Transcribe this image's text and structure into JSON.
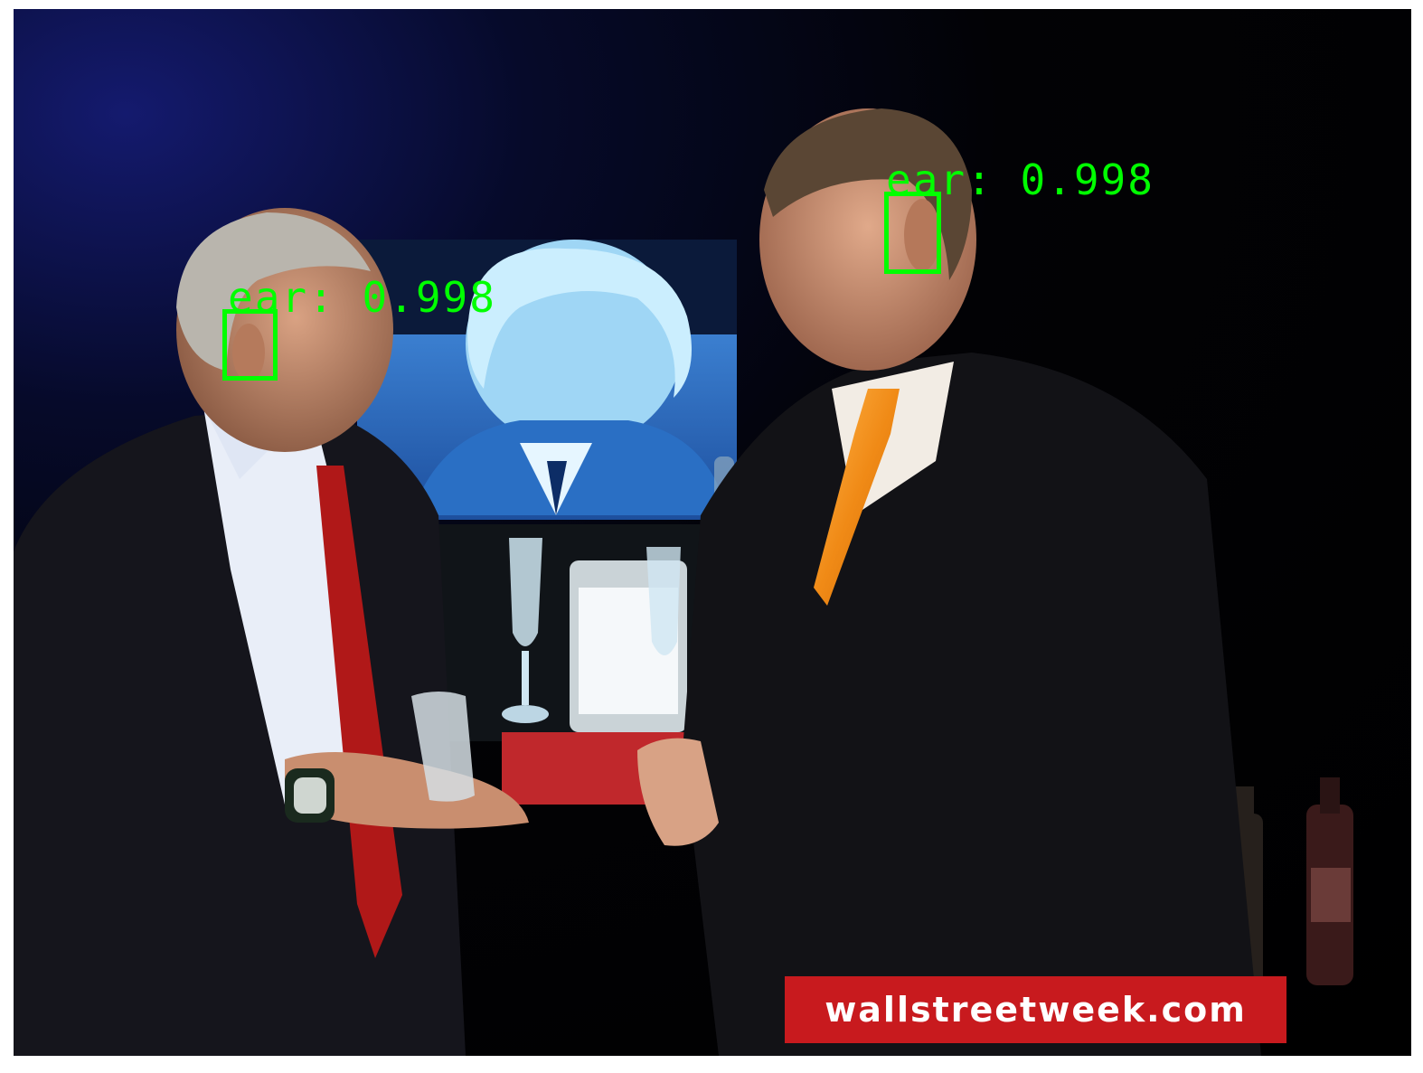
{
  "detections": [
    {
      "label": "ear: 0.998"
    },
    {
      "label": "ear: 0.998"
    }
  ],
  "overlay": {
    "watermark": "wallstreetweek.com"
  },
  "colors": {
    "box": "#00ff00",
    "banner": "#c81a1e"
  }
}
